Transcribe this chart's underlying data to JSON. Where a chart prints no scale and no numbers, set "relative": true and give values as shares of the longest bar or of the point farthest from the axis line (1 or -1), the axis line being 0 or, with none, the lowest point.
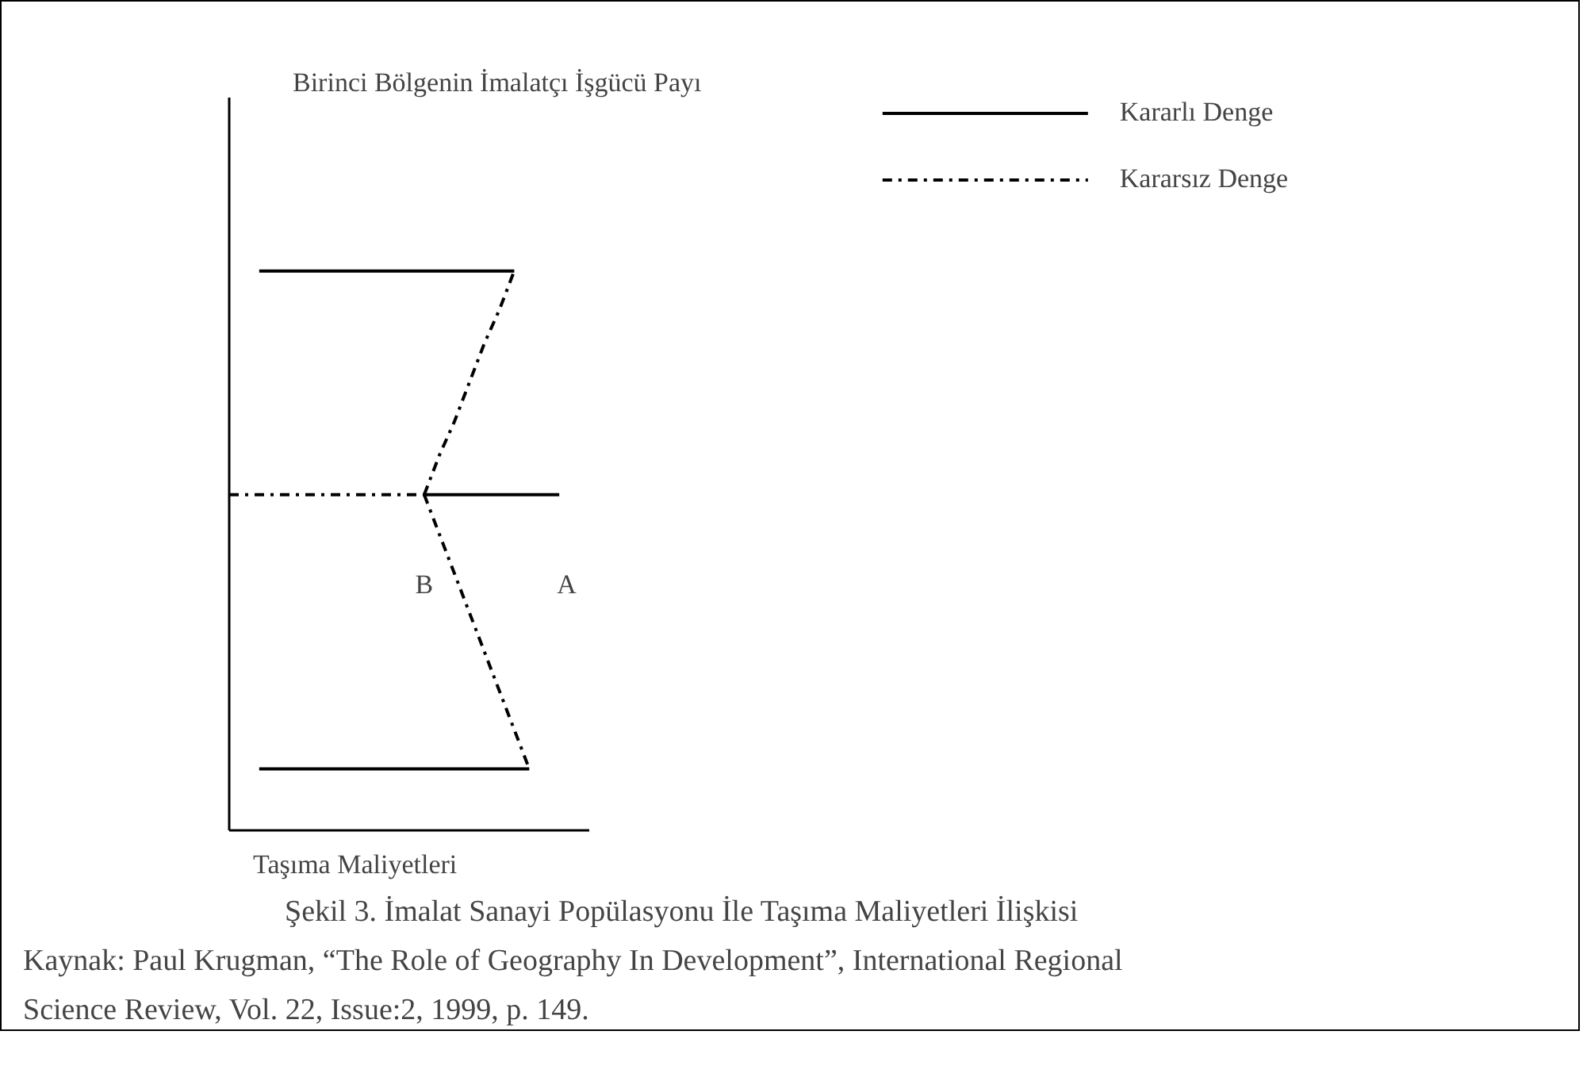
{
  "chart_data": {
    "type": "line",
    "relative": true,
    "title": "Şekil 3. İmalat Sanayi Popülasyonu İle Taşıma Maliyetleri İlişkisi",
    "xlabel": "Taşıma Maliyetleri",
    "grid": false,
    "legend": "top right",
    "marker": "none",
    "categories": [
      null,
      null,
      null,
      null,
      null,
      null,
      null,
      null,
      null,
      null,
      null,
      null,
      null,
      null,
      null,
      null,
      null,
      null,
      null,
      null,
      null,
      null,
      null,
      null
    ],
    "series": [
      {
        "name": "Kararlı Denge",
        "color": "#000000",
        "line_style": "solid",
        "values": [
          null,
          null,
          1,
          1,
          1,
          1,
          1,
          1,
          1,
          1,
          1,
          1,
          1,
          1,
          1,
          1,
          1,
          1,
          1,
          1,
          null,
          null,
          null,
          null
        ]
      },
      {
        "color": "#000000",
        "line_style": "solid",
        "values": [
          null,
          null,
          null,
          null,
          null,
          null,
          null,
          null,
          null,
          null,
          null,
          null,
          null,
          0.6,
          0.6,
          0.6,
          0.6,
          0.6,
          0.6,
          0.6,
          0.6,
          0.6,
          0.6,
          null
        ]
      },
      {
        "color": "#000000",
        "line_style": "solid",
        "values": [
          null,
          null,
          0.11,
          0.11,
          0.11,
          0.11,
          0.11,
          0.11,
          0.11,
          0.11,
          0.11,
          0.11,
          0.11,
          0.11,
          0.11,
          0.11,
          0.11,
          0.11,
          0.11,
          0.11,
          0.11,
          null,
          null,
          null
        ]
      },
      {
        "name": "Kararsız Denge",
        "color": "#000000",
        "line_style": "dashdot",
        "values": [
          0.6,
          0.6,
          0.6,
          0.6,
          0.6,
          0.6,
          0.6,
          0.6,
          0.6,
          0.6,
          0.6,
          0.6,
          0.6,
          0.6,
          null,
          null,
          null,
          null,
          null,
          null,
          null,
          null,
          null,
          null
        ]
      },
      {
        "color": "#000000",
        "line_style": "dashdot",
        "values": [
          null,
          null,
          null,
          null,
          null,
          null,
          null,
          null,
          null,
          null,
          null,
          null,
          null,
          0.6,
          0.67,
          0.73,
          0.8,
          0.87,
          0.93,
          1,
          null,
          null,
          null,
          null
        ]
      },
      {
        "color": "#000000",
        "line_style": "dashdot",
        "values": [
          null,
          null,
          null,
          null,
          null,
          null,
          null,
          null,
          null,
          null,
          null,
          null,
          null,
          0.6,
          0.53,
          0.46,
          0.39,
          0.32,
          0.25,
          0.18,
          0.11,
          null,
          null,
          null
        ]
      }
    ],
    "annotations": [
      "Birinci Bölgenin İmalatçı İşgücü Payı",
      "B",
      "A",
      "Kaynak: Paul Krugman, “The Role of Geography In Development”, International Regional Science Review, Vol. 22, Issue:2, 1999, p. 149."
    ]
  }
}
